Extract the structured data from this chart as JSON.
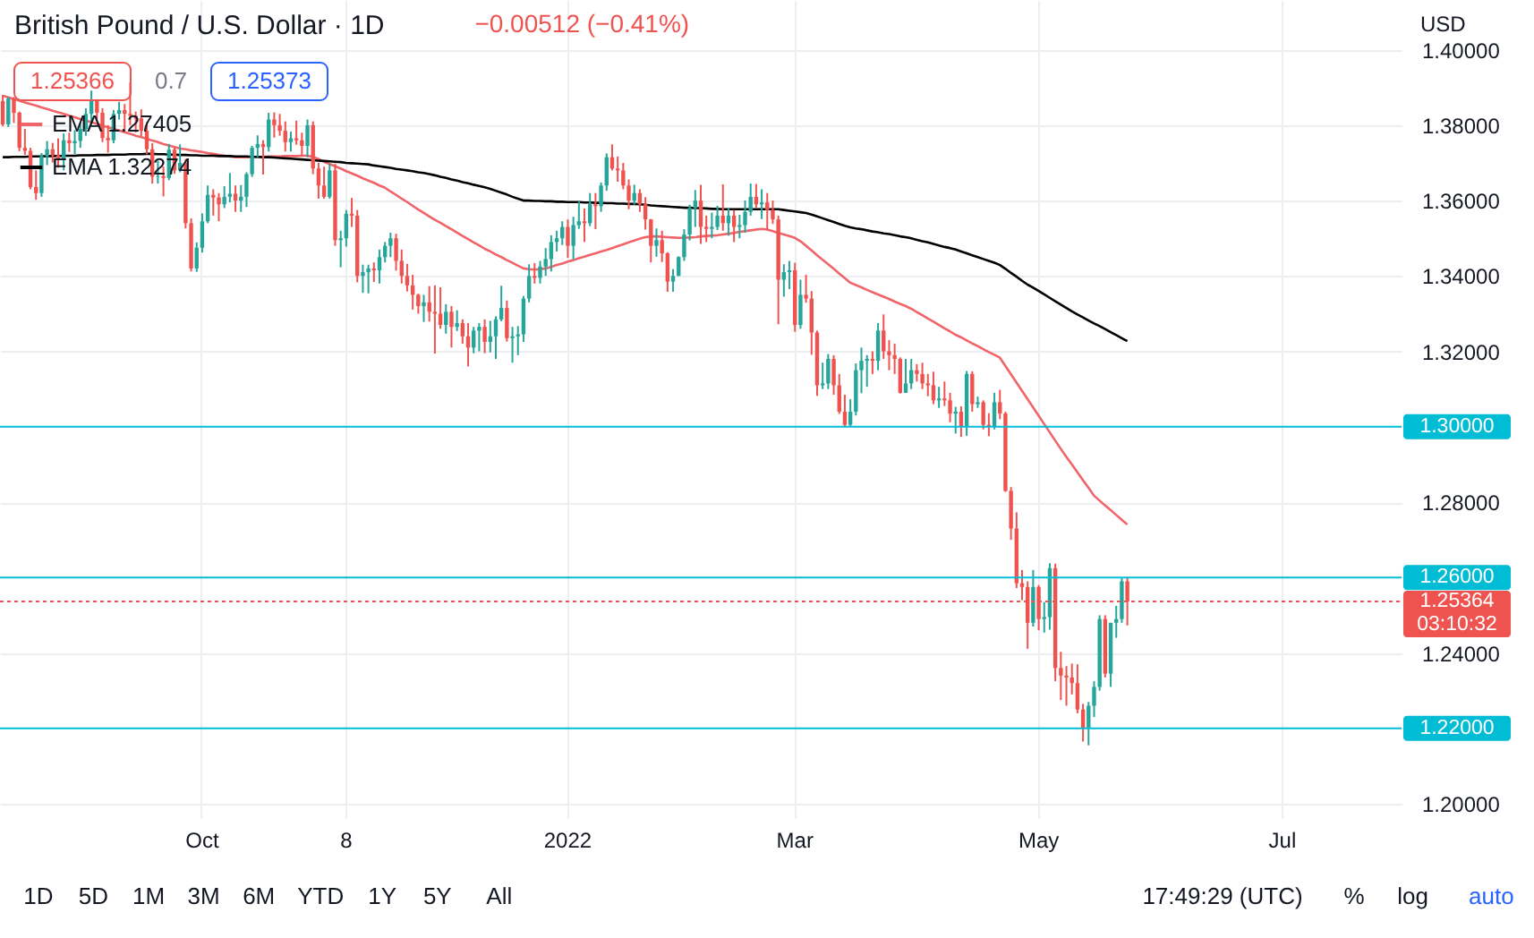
{
  "chart_data": {
    "type": "candlestick",
    "title": "British Pound / U.S. Dollar · 1D",
    "subtitle": "−0.00512 (−0.41%)",
    "ylabel": "USD",
    "categories": [
      null,
      null,
      null,
      null,
      null,
      null,
      null,
      null,
      null,
      null,
      null,
      null,
      null,
      null,
      null,
      null,
      null,
      null,
      null,
      null,
      null,
      null,
      null,
      null,
      null,
      null,
      null,
      null,
      null,
      null,
      null,
      null,
      null,
      null,
      null,
      null,
      "Oct",
      null,
      null,
      null,
      null,
      null,
      null,
      null,
      null,
      null,
      null,
      null,
      null,
      null,
      null,
      null,
      null,
      null,
      null,
      null,
      null,
      null,
      null,
      null,
      null,
      null,
      "8",
      null,
      null,
      null,
      null,
      null,
      null,
      null,
      null,
      null,
      null,
      null,
      null,
      null,
      null,
      null,
      null,
      null,
      null,
      null,
      null,
      null,
      null,
      null,
      null,
      null,
      null,
      null,
      null,
      null,
      null,
      null,
      null,
      null,
      null,
      null,
      null,
      null,
      null,
      null,
      "2022",
      null,
      null,
      null,
      null,
      null,
      null,
      null,
      null,
      null,
      null,
      null,
      null,
      null,
      null,
      null,
      null,
      null,
      null,
      null,
      null,
      null,
      null,
      null,
      null,
      null,
      null,
      null,
      null,
      null,
      null,
      null,
      null,
      null,
      null,
      null,
      null,
      null,
      null,
      null,
      null,
      "Mar",
      null,
      null,
      null,
      null,
      null,
      null,
      null,
      null,
      null,
      null,
      null,
      null,
      null,
      null,
      null,
      null,
      null,
      null,
      null,
      null,
      null,
      null,
      null,
      null,
      null,
      null,
      null,
      null,
      null,
      null,
      null,
      null,
      null,
      null,
      null,
      null,
      null,
      null,
      null,
      null,
      null,
      null,
      null,
      "May",
      null,
      null,
      null,
      null,
      null,
      null,
      null,
      null,
      null,
      null,
      null,
      null,
      null,
      null,
      null,
      null,
      null,
      null,
      null,
      null,
      null,
      null,
      null,
      null,
      null,
      null,
      null,
      null,
      null,
      null,
      null,
      null,
      null,
      null,
      null,
      null,
      null,
      null,
      null,
      null,
      null,
      null,
      null,
      "Jul",
      null,
      null,
      null,
      null,
      null,
      null,
      null,
      null,
      null,
      null,
      null,
      null,
      null,
      null,
      null,
      null,
      null,
      null,
      null,
      null,
      null
    ],
    "ohlc": [
      [
        1.3864,
        1.388,
        1.3797,
        1.3802
      ],
      [
        1.3802,
        1.3875,
        1.3795,
        1.387
      ],
      [
        1.387,
        1.3875,
        1.3806,
        1.3833
      ],
      [
        1.3833,
        1.3836,
        1.3731,
        1.374
      ],
      [
        1.374,
        1.379,
        1.3721,
        1.3732
      ],
      [
        1.3732,
        1.374,
        1.363,
        1.3636
      ],
      [
        1.3636,
        1.368,
        1.3602,
        1.362
      ],
      [
        1.362,
        1.3726,
        1.361,
        1.3718
      ],
      [
        1.3718,
        1.3758,
        1.3694,
        1.3736
      ],
      [
        1.3736,
        1.3753,
        1.3701,
        1.372
      ],
      [
        1.372,
        1.3765,
        1.3687,
        1.371
      ],
      [
        1.371,
        1.3778,
        1.368,
        1.376
      ],
      [
        1.376,
        1.378,
        1.3729,
        1.3752
      ],
      [
        1.3752,
        1.3787,
        1.3723,
        1.3758
      ],
      [
        1.3758,
        1.3806,
        1.374,
        1.379
      ],
      [
        1.379,
        1.3845,
        1.3772,
        1.383
      ],
      [
        1.383,
        1.3892,
        1.3804,
        1.3868
      ],
      [
        1.3868,
        1.3869,
        1.3815,
        1.3833
      ],
      [
        1.3833,
        1.3845,
        1.3755,
        1.3766
      ],
      [
        1.3766,
        1.38,
        1.3727,
        1.376
      ],
      [
        1.376,
        1.384,
        1.3752,
        1.383
      ],
      [
        1.383,
        1.3862,
        1.3815,
        1.384
      ],
      [
        1.384,
        1.3856,
        1.3781,
        1.383
      ],
      [
        1.383,
        1.3913,
        1.38,
        1.3825
      ],
      [
        1.3825,
        1.3836,
        1.3781,
        1.3818
      ],
      [
        1.3818,
        1.3842,
        1.377,
        1.3785
      ],
      [
        1.3785,
        1.3808,
        1.3723,
        1.3736
      ],
      [
        1.3736,
        1.3752,
        1.3645,
        1.3663
      ],
      [
        1.3663,
        1.3706,
        1.3645,
        1.3665
      ],
      [
        1.3665,
        1.369,
        1.3611,
        1.366
      ],
      [
        1.366,
        1.375,
        1.3654,
        1.3735
      ],
      [
        1.3735,
        1.3741,
        1.3671,
        1.368
      ],
      [
        1.368,
        1.3749,
        1.3675,
        1.37
      ],
      [
        1.37,
        1.371,
        1.3526,
        1.354
      ],
      [
        1.354,
        1.3553,
        1.3412,
        1.342
      ],
      [
        1.342,
        1.3489,
        1.3411,
        1.3475
      ],
      [
        1.3475,
        1.3566,
        1.3462,
        1.3545
      ],
      [
        1.3545,
        1.364,
        1.354,
        1.3615
      ],
      [
        1.3615,
        1.363,
        1.356,
        1.3608
      ],
      [
        1.3608,
        1.362,
        1.3545,
        1.359
      ],
      [
        1.359,
        1.3638,
        1.358,
        1.361
      ],
      [
        1.361,
        1.3673,
        1.3595,
        1.3618
      ],
      [
        1.3618,
        1.364,
        1.357,
        1.36
      ],
      [
        1.36,
        1.3641,
        1.357,
        1.361
      ],
      [
        1.361,
        1.3675,
        1.3583,
        1.367
      ],
      [
        1.367,
        1.3745,
        1.3663,
        1.374
      ],
      [
        1.374,
        1.3773,
        1.3715,
        1.375
      ],
      [
        1.375,
        1.376,
        1.3669,
        1.3742
      ],
      [
        1.3742,
        1.3833,
        1.373,
        1.3815
      ],
      [
        1.3815,
        1.3834,
        1.3767,
        1.38
      ],
      [
        1.38,
        1.383,
        1.3772,
        1.3785
      ],
      [
        1.3785,
        1.381,
        1.373,
        1.3755
      ],
      [
        1.3755,
        1.3783,
        1.373,
        1.3765
      ],
      [
        1.3765,
        1.3812,
        1.3748,
        1.376
      ],
      [
        1.376,
        1.378,
        1.3717,
        1.3745
      ],
      [
        1.3745,
        1.3815,
        1.3715,
        1.38
      ],
      [
        1.38,
        1.381,
        1.367,
        1.3685
      ],
      [
        1.3685,
        1.37,
        1.3605,
        1.364
      ],
      [
        1.364,
        1.369,
        1.3605,
        1.361
      ],
      [
        1.361,
        1.3698,
        1.3605,
        1.368
      ],
      [
        1.368,
        1.3698,
        1.348,
        1.3495
      ],
      [
        1.3495,
        1.352,
        1.3423,
        1.35
      ],
      [
        1.35,
        1.3575,
        1.3478,
        1.3565
      ],
      [
        1.3565,
        1.3607,
        1.353,
        1.356
      ],
      [
        1.356,
        1.3575,
        1.3383,
        1.34
      ],
      [
        1.34,
        1.343,
        1.3355,
        1.341
      ],
      [
        1.341,
        1.343,
        1.3354,
        1.342
      ],
      [
        1.342,
        1.3436,
        1.3384,
        1.3415
      ],
      [
        1.3415,
        1.347,
        1.338,
        1.345
      ],
      [
        1.345,
        1.349,
        1.3436,
        1.348
      ],
      [
        1.348,
        1.3515,
        1.345,
        1.35
      ],
      [
        1.35,
        1.3512,
        1.3414,
        1.344
      ],
      [
        1.344,
        1.347,
        1.338,
        1.34
      ],
      [
        1.34,
        1.3432,
        1.3359,
        1.3375
      ],
      [
        1.3375,
        1.3403,
        1.3311,
        1.335
      ],
      [
        1.335,
        1.3353,
        1.33,
        1.332
      ],
      [
        1.332,
        1.335,
        1.3278,
        1.333
      ],
      [
        1.333,
        1.3373,
        1.3279,
        1.3305
      ],
      [
        1.3305,
        1.3375,
        1.3194,
        1.33
      ],
      [
        1.33,
        1.337,
        1.326,
        1.327
      ],
      [
        1.327,
        1.3325,
        1.3247,
        1.3305
      ],
      [
        1.3305,
        1.332,
        1.321,
        1.3265
      ],
      [
        1.3265,
        1.3309,
        1.3254,
        1.3275
      ],
      [
        1.3275,
        1.3285,
        1.322,
        1.324
      ],
      [
        1.324,
        1.3275,
        1.316,
        1.321
      ],
      [
        1.321,
        1.3265,
        1.3195,
        1.3255
      ],
      [
        1.3255,
        1.3275,
        1.32,
        1.3265
      ],
      [
        1.3265,
        1.3285,
        1.3195,
        1.3225
      ],
      [
        1.3225,
        1.3281,
        1.3197,
        1.324
      ],
      [
        1.324,
        1.3293,
        1.318,
        1.3285
      ],
      [
        1.3285,
        1.3374,
        1.328,
        1.3315
      ],
      [
        1.3315,
        1.3335,
        1.3226,
        1.3235
      ],
      [
        1.3235,
        1.3265,
        1.317,
        1.324
      ],
      [
        1.324,
        1.3267,
        1.319,
        1.3245
      ],
      [
        1.3245,
        1.3347,
        1.3225,
        1.334
      ],
      [
        1.334,
        1.3431,
        1.333,
        1.34
      ],
      [
        1.34,
        1.3434,
        1.338,
        1.3395
      ],
      [
        1.3395,
        1.344,
        1.338,
        1.3425
      ],
      [
        1.3425,
        1.3474,
        1.34,
        1.3445
      ],
      [
        1.3445,
        1.3508,
        1.3412,
        1.349
      ],
      [
        1.349,
        1.352,
        1.3465,
        1.35
      ],
      [
        1.35,
        1.3545,
        1.3482,
        1.353
      ],
      [
        1.353,
        1.355,
        1.3448,
        1.348
      ],
      [
        1.348,
        1.3557,
        1.3444,
        1.3535
      ],
      [
        1.3535,
        1.3598,
        1.3525,
        1.3545
      ],
      [
        1.3545,
        1.3579,
        1.349,
        1.354
      ],
      [
        1.354,
        1.362,
        1.3532,
        1.359
      ],
      [
        1.359,
        1.362,
        1.3524,
        1.3585
      ],
      [
        1.3585,
        1.3648,
        1.357,
        1.364
      ],
      [
        1.364,
        1.3725,
        1.3626,
        1.3715
      ],
      [
        1.3715,
        1.3749,
        1.368,
        1.3685
      ],
      [
        1.3685,
        1.3717,
        1.365,
        1.368
      ],
      [
        1.368,
        1.37,
        1.363,
        1.364
      ],
      [
        1.364,
        1.3656,
        1.3577,
        1.36
      ],
      [
        1.36,
        1.3642,
        1.3589,
        1.362
      ],
      [
        1.362,
        1.363,
        1.357,
        1.359
      ],
      [
        1.359,
        1.3609,
        1.3523,
        1.355
      ],
      [
        1.355,
        1.3551,
        1.3436,
        1.348
      ],
      [
        1.348,
        1.3526,
        1.3451,
        1.3495
      ],
      [
        1.3495,
        1.352,
        1.3437,
        1.346
      ],
      [
        1.346,
        1.3463,
        1.3358,
        1.3385
      ],
      [
        1.3385,
        1.3418,
        1.3358,
        1.34
      ],
      [
        1.34,
        1.3452,
        1.34,
        1.345
      ],
      [
        1.345,
        1.3524,
        1.344,
        1.351
      ],
      [
        1.351,
        1.3589,
        1.3494,
        1.358
      ],
      [
        1.358,
        1.3628,
        1.353,
        1.36
      ],
      [
        1.36,
        1.3642,
        1.3485,
        1.353
      ],
      [
        1.353,
        1.356,
        1.349,
        1.3525
      ],
      [
        1.3525,
        1.3568,
        1.35,
        1.353
      ],
      [
        1.353,
        1.3586,
        1.3522,
        1.356
      ],
      [
        1.356,
        1.3643,
        1.352,
        1.354
      ],
      [
        1.354,
        1.358,
        1.3507,
        1.356
      ],
      [
        1.356,
        1.3575,
        1.349,
        1.353
      ],
      [
        1.353,
        1.3562,
        1.35,
        1.3535
      ],
      [
        1.3535,
        1.36,
        1.3515,
        1.357
      ],
      [
        1.357,
        1.3645,
        1.356,
        1.361
      ],
      [
        1.361,
        1.3644,
        1.358,
        1.359
      ],
      [
        1.359,
        1.363,
        1.3551,
        1.3595
      ],
      [
        1.3595,
        1.362,
        1.3523,
        1.3575
      ],
      [
        1.3575,
        1.36,
        1.3538,
        1.355
      ],
      [
        1.355,
        1.356,
        1.3272,
        1.339
      ],
      [
        1.339,
        1.3431,
        1.3345,
        1.341
      ],
      [
        1.341,
        1.344,
        1.3365,
        1.3415
      ],
      [
        1.3415,
        1.3435,
        1.3252,
        1.327
      ],
      [
        1.327,
        1.339,
        1.326,
        1.335
      ],
      [
        1.335,
        1.3403,
        1.3329,
        1.334
      ],
      [
        1.334,
        1.336,
        1.3191,
        1.325
      ],
      [
        1.325,
        1.3255,
        1.3082,
        1.311
      ],
      [
        1.311,
        1.317,
        1.31,
        1.3115
      ],
      [
        1.3115,
        1.3193,
        1.31,
        1.318
      ],
      [
        1.318,
        1.319,
        1.3085,
        1.311
      ],
      [
        1.311,
        1.314,
        1.3034,
        1.304
      ],
      [
        1.304,
        1.3085,
        1.3,
        1.3005
      ],
      [
        1.3005,
        1.3073,
        1.3002,
        1.304
      ],
      [
        1.304,
        1.3168,
        1.303,
        1.315
      ],
      [
        1.315,
        1.321,
        1.3089,
        1.3175
      ],
      [
        1.3175,
        1.319,
        1.3106,
        1.318
      ],
      [
        1.318,
        1.32,
        1.314,
        1.3175
      ],
      [
        1.3175,
        1.3275,
        1.315,
        1.3255
      ],
      [
        1.3255,
        1.3298,
        1.318,
        1.32
      ],
      [
        1.32,
        1.323,
        1.315,
        1.319
      ],
      [
        1.319,
        1.322,
        1.314,
        1.318
      ],
      [
        1.318,
        1.3184,
        1.3088,
        1.309
      ],
      [
        1.309,
        1.318,
        1.309,
        1.3115
      ],
      [
        1.3115,
        1.318,
        1.31,
        1.315
      ],
      [
        1.315,
        1.3166,
        1.312,
        1.314
      ],
      [
        1.314,
        1.317,
        1.31,
        1.3115
      ],
      [
        1.3115,
        1.314,
        1.3081,
        1.311
      ],
      [
        1.311,
        1.3146,
        1.306,
        1.307
      ],
      [
        1.307,
        1.3106,
        1.305,
        1.3075
      ],
      [
        1.3075,
        1.312,
        1.3055,
        1.307
      ],
      [
        1.307,
        1.309,
        1.3012,
        1.3035
      ],
      [
        1.3035,
        1.3053,
        1.2982,
        1.304
      ],
      [
        1.304,
        1.3054,
        1.2973,
        1.3
      ],
      [
        1.3,
        1.3148,
        1.2976,
        1.314
      ],
      [
        1.314,
        1.3147,
        1.304,
        1.306
      ],
      [
        1.306,
        1.308,
        1.305,
        1.3065
      ],
      [
        1.3065,
        1.307,
        1.2993,
        1.3005
      ],
      [
        1.3005,
        1.3036,
        1.2975,
        1.3
      ],
      [
        1.3,
        1.309,
        1.2993,
        1.3065
      ],
      [
        1.3065,
        1.3098,
        1.302,
        1.3035
      ],
      [
        1.3035,
        1.304,
        1.2827,
        1.283
      ],
      [
        1.283,
        1.284,
        1.27,
        1.273
      ],
      [
        1.273,
        1.2773,
        1.2572,
        1.2585
      ],
      [
        1.2585,
        1.262,
        1.254,
        1.2575
      ],
      [
        1.2575,
        1.259,
        1.2411,
        1.248
      ],
      [
        1.248,
        1.262,
        1.247,
        1.2575
      ],
      [
        1.2575,
        1.258,
        1.246,
        1.249
      ],
      [
        1.249,
        1.2535,
        1.2454,
        1.2495
      ],
      [
        1.2495,
        1.2638,
        1.2462,
        1.2625
      ],
      [
        1.2625,
        1.2637,
        1.2325,
        1.236
      ],
      [
        1.236,
        1.2403,
        1.2275,
        1.234
      ],
      [
        1.234,
        1.2365,
        1.226,
        1.2335
      ],
      [
        1.2335,
        1.2372,
        1.229,
        1.232
      ],
      [
        1.232,
        1.237,
        1.224,
        1.225
      ],
      [
        1.225,
        1.2265,
        1.2165,
        1.22
      ],
      [
        1.22,
        1.227,
        1.2155,
        1.226
      ],
      [
        1.226,
        1.2325,
        1.223,
        1.231
      ],
      [
        1.231,
        1.25,
        1.23,
        1.249
      ],
      [
        1.249,
        1.25,
        1.2335,
        1.2345
      ],
      [
        1.2345,
        1.248,
        1.231,
        1.248
      ],
      [
        1.248,
        1.2525,
        1.244,
        1.249
      ],
      [
        1.249,
        1.26,
        1.248,
        1.259
      ],
      [
        1.259,
        1.2599,
        1.2473,
        1.2536
      ],
      null,
      null,
      null,
      null,
      null,
      null,
      null,
      null,
      null,
      null,
      null,
      null,
      null,
      null,
      null,
      null,
      null,
      null,
      null,
      null,
      null,
      null,
      null,
      null,
      null,
      null,
      null,
      null,
      null,
      null,
      null,
      null,
      null,
      null,
      null,
      null,
      null,
      null,
      null,
      null,
      null,
      null,
      null,
      null,
      null,
      null,
      null,
      null,
      null
    ],
    "colors": [
      "#ef5350",
      "#26a69a",
      "#ef5350",
      "#ef5350",
      "#ef5350",
      "#ef5350",
      "#ef5350",
      "#26a69a",
      "#26a69a",
      "#ef5350",
      "#ef5350",
      "#26a69a",
      "#ef5350",
      "#26a69a",
      "#26a69a",
      "#26a69a",
      "#26a69a",
      "#ef5350",
      "#ef5350",
      "#ef5350",
      "#26a69a",
      "#26a69a",
      "#ef5350",
      "#ef5350",
      "#ef5350",
      "#ef5350",
      "#ef5350",
      "#ef5350",
      "#26a69a",
      "#ef5350",
      "#26a69a",
      "#ef5350",
      "#26a69a",
      "#ef5350",
      "#ef5350",
      "#26a69a",
      "#26a69a",
      "#26a69a",
      "#ef5350",
      "#ef5350",
      "#26a69a",
      "#26a69a",
      "#ef5350",
      "#26a69a",
      "#26a69a",
      "#26a69a",
      "#26a69a",
      "#ef5350",
      "#26a69a",
      "#ef5350",
      "#ef5350",
      "#ef5350",
      "#26a69a",
      "#ef5350",
      "#ef5350",
      "#26a69a",
      "#ef5350",
      "#ef5350",
      "#ef5350",
      "#26a69a",
      "#ef5350",
      "#26a69a",
      "#26a69a",
      "#ef5350",
      "#ef5350",
      "#26a69a",
      "#26a69a",
      "#ef5350",
      "#26a69a",
      "#26a69a",
      "#26a69a",
      "#ef5350",
      "#ef5350",
      "#ef5350",
      "#ef5350",
      "#ef5350",
      "#26a69a",
      "#ef5350",
      "#ef5350",
      "#ef5350",
      "#26a69a",
      "#ef5350",
      "#26a69a",
      "#ef5350",
      "#ef5350",
      "#26a69a",
      "#26a69a",
      "#ef5350",
      "#26a69a",
      "#26a69a",
      "#26a69a",
      "#ef5350",
      "#26a69a",
      "#26a69a",
      "#26a69a",
      "#26a69a",
      "#ef5350",
      "#26a69a",
      "#26a69a",
      "#26a69a",
      "#26a69a",
      "#26a69a",
      "#ef5350",
      "#26a69a",
      "#26a69a",
      "#ef5350",
      "#26a69a",
      "#ef5350",
      "#26a69a",
      "#26a69a",
      "#ef5350",
      "#ef5350",
      "#ef5350",
      "#ef5350",
      "#26a69a",
      "#ef5350",
      "#ef5350",
      "#ef5350",
      "#26a69a",
      "#ef5350",
      "#ef5350",
      "#26a69a",
      "#26a69a",
      "#26a69a",
      "#26a69a",
      "#26a69a",
      "#ef5350",
      "#ef5350",
      "#26a69a",
      "#26a69a",
      "#ef5350",
      "#26a69a",
      "#ef5350",
      "#26a69a",
      "#26a69a",
      "#26a69a",
      "#ef5350",
      "#26a69a",
      "#ef5350",
      "#ef5350",
      "#ef5350",
      "#26a69a",
      "#26a69a",
      "#ef5350",
      "#26a69a",
      "#ef5350",
      "#ef5350",
      "#ef5350",
      "#26a69a",
      "#26a69a",
      "#ef5350",
      "#ef5350",
      "#ef5350",
      "#26a69a",
      "#26a69a",
      "#26a69a",
      "#26a69a",
      "#ef5350",
      "#26a69a",
      "#ef5350",
      "#ef5350",
      "#ef5350",
      "#ef5350",
      "#26a69a",
      "#26a69a",
      "#ef5350",
      "#ef5350",
      "#ef5350",
      "#ef5350",
      "#26a69a",
      "#ef5350",
      "#ef5350",
      "#26a69a",
      "#ef5350",
      "#26a69a",
      "#ef5350",
      "#26a69a",
      "#ef5350",
      "#ef5350",
      "#26a69a",
      "#ef5350",
      "#ef5350",
      "#ef5350",
      "#ef5350",
      "#ef5350",
      "#ef5350",
      "#26a69a",
      "#ef5350",
      "#26a69a",
      "#26a69a",
      "#ef5350",
      "#ef5350",
      "#ef5350",
      "#ef5350",
      "#ef5350",
      "#ef5350",
      "#26a69a",
      "#26a69a",
      "#26a69a",
      "#ef5350",
      "#26a69a",
      "#26a69a",
      "#26a69a",
      "#ef5350",
      null,
      null,
      null,
      null,
      null,
      null,
      null,
      null,
      null,
      null,
      null,
      null,
      null,
      null,
      null,
      null,
      null,
      null,
      null,
      null,
      null,
      null,
      null,
      null,
      null,
      null,
      null,
      null,
      null,
      null,
      null,
      null,
      null,
      null,
      null,
      null,
      null,
      null,
      null,
      null,
      null,
      null,
      null,
      null,
      null,
      null,
      null,
      null,
      null
    ],
    "series": [
      {
        "name": "EMA 1.27405",
        "type": "line",
        "color": "#f0646a",
        "values": [
          1.3878,
          1.3874,
          1.3869,
          1.3865,
          1.386,
          1.3856,
          1.3852,
          1.3847,
          1.3843,
          1.3838,
          1.3834,
          1.383,
          1.3825,
          1.3821,
          1.3816,
          1.3812,
          1.3808,
          1.3803,
          1.3799,
          1.3794,
          1.379,
          1.3786,
          1.3781,
          1.3777,
          1.3772,
          1.3768,
          1.3764,
          1.3759,
          1.3755,
          1.375,
          1.3746,
          1.3742,
          1.3738,
          1.3736,
          1.3733,
          1.3731,
          1.3729,
          1.3726,
          1.3724,
          1.3721,
          1.3719,
          1.3717,
          1.3715,
          1.3715,
          1.3715,
          1.3716,
          1.3716,
          1.3716,
          1.3717,
          1.3717,
          1.3717,
          1.3718,
          1.3718,
          1.3718,
          1.3719,
          1.3719,
          1.3716,
          1.371,
          1.3703,
          1.3697,
          1.3691,
          1.3685,
          1.3678,
          1.3672,
          1.3666,
          1.3659,
          1.3653,
          1.3647,
          1.364,
          1.3634,
          1.3624,
          1.3615,
          1.3605,
          1.3596,
          1.3586,
          1.3576,
          1.3567,
          1.3558,
          1.3549,
          1.3541,
          1.3532,
          1.3524,
          1.3515,
          1.3506,
          1.3498,
          1.3489,
          1.3481,
          1.3472,
          1.3465,
          1.3457,
          1.345,
          1.3442,
          1.3435,
          1.3427,
          1.342,
          1.3418,
          1.3417,
          1.3418,
          1.342,
          1.3424,
          1.3429,
          1.3433,
          1.3438,
          1.3442,
          1.3447,
          1.3451,
          1.3456,
          1.346,
          1.3465,
          1.3469,
          1.3474,
          1.3479,
          1.3484,
          1.3489,
          1.3494,
          1.3499,
          1.3503,
          1.3505,
          1.3505,
          1.3504,
          1.3503,
          1.3502,
          1.3501,
          1.3501,
          1.3502,
          1.3503,
          1.3505,
          1.3506,
          1.3507,
          1.3508,
          1.351,
          1.3512,
          1.3514,
          1.3517,
          1.3519,
          1.3521,
          1.3523,
          1.3525,
          1.3523,
          1.3519,
          1.3514,
          1.351,
          1.3506,
          1.3501,
          1.3492,
          1.348,
          1.3468,
          1.3455,
          1.3443,
          1.3431,
          1.3419,
          1.3406,
          1.3394,
          1.3382,
          1.3376,
          1.337,
          1.3363,
          1.3357,
          1.3351,
          1.3345,
          1.3339,
          1.3332,
          1.3326,
          1.332,
          1.3313,
          1.3304,
          1.3296,
          1.3287,
          1.3279,
          1.327,
          1.3261,
          1.3253,
          1.3244,
          1.3237,
          1.3229,
          1.3221,
          1.3214,
          1.3206,
          1.3198,
          1.3191,
          1.3183,
          1.3161,
          1.3139,
          1.3117,
          1.3095,
          1.3073,
          1.3051,
          1.3029,
          1.3007,
          1.2985,
          1.2963,
          1.2941,
          1.292,
          1.29,
          1.2879,
          1.2858,
          1.2838,
          1.2817,
          1.2804,
          1.2791,
          1.2779,
          1.2766,
          1.2753,
          1.2741,
          null,
          null,
          null,
          null,
          null,
          null,
          null,
          null,
          null,
          null,
          null,
          null,
          null,
          null,
          null,
          null,
          null,
          null,
          null,
          null,
          null,
          null,
          null,
          null,
          null,
          null,
          null,
          null,
          null,
          null,
          null,
          null,
          null,
          null,
          null,
          null,
          null,
          null,
          null,
          null,
          null,
          null,
          null,
          null,
          null,
          null,
          null,
          null,
          null
        ]
      },
      {
        "name": "EMA 1.32274",
        "type": "line",
        "color": "#000000",
        "values": [
          1.3715,
          1.3715,
          1.3716,
          1.3716,
          1.3716,
          1.3717,
          1.3717,
          1.3717,
          1.3718,
          1.3718,
          1.3718,
          1.3719,
          1.3719,
          1.3719,
          1.372,
          1.372,
          1.372,
          1.3721,
          1.3721,
          1.3721,
          1.3722,
          1.3722,
          1.3722,
          1.3723,
          1.3723,
          1.3723,
          1.3724,
          1.3724,
          1.3723,
          1.3723,
          1.3722,
          1.3722,
          1.3721,
          1.3721,
          1.372,
          1.372,
          1.3719,
          1.3719,
          1.3719,
          1.3718,
          1.3718,
          1.3718,
          1.3717,
          1.3717,
          1.3717,
          1.3716,
          1.3716,
          1.3715,
          1.3715,
          1.3714,
          1.3713,
          1.3712,
          1.3711,
          1.371,
          1.3709,
          1.3708,
          1.3707,
          1.3706,
          1.3705,
          1.3704,
          1.3703,
          1.3702,
          1.37,
          1.3699,
          1.3698,
          1.3697,
          1.3696,
          1.3693,
          1.3691,
          1.3689,
          1.3687,
          1.3684,
          1.3682,
          1.368,
          1.3678,
          1.3675,
          1.3673,
          1.367,
          1.3667,
          1.3663,
          1.366,
          1.3656,
          1.3653,
          1.3649,
          1.3646,
          1.3642,
          1.3639,
          1.3635,
          1.3631,
          1.3626,
          1.3621,
          1.3616,
          1.361,
          1.3605,
          1.36,
          1.36,
          1.3599,
          1.3599,
          1.3598,
          1.3598,
          1.3597,
          1.3597,
          1.3596,
          1.3596,
          1.3596,
          1.3595,
          1.3595,
          1.3594,
          1.3594,
          1.3593,
          1.3593,
          1.3592,
          1.3592,
          1.3591,
          1.3591,
          1.359,
          1.3589,
          1.3587,
          1.3586,
          1.3585,
          1.3584,
          1.3583,
          1.3582,
          1.3581,
          1.3581,
          1.358,
          1.358,
          1.3579,
          1.3578,
          1.3578,
          1.3577,
          1.3577,
          1.3577,
          1.3577,
          1.3577,
          1.3577,
          1.3577,
          1.3577,
          1.3577,
          1.3577,
          1.3577,
          1.3575,
          1.3573,
          1.3571,
          1.3569,
          1.3567,
          1.3563,
          1.3558,
          1.3553,
          1.3548,
          1.3543,
          1.3538,
          1.3533,
          1.3529,
          1.3526,
          1.3524,
          1.3521,
          1.3518,
          1.3516,
          1.3513,
          1.3511,
          1.3508,
          1.3505,
          1.3503,
          1.35,
          1.3496,
          1.3492,
          1.3489,
          1.3485,
          1.3481,
          1.3477,
          1.3474,
          1.347,
          1.3465,
          1.346,
          1.3455,
          1.345,
          1.3445,
          1.344,
          1.3435,
          1.3429,
          1.3419,
          1.3408,
          1.3398,
          1.3387,
          1.3377,
          1.3369,
          1.336,
          1.3351,
          1.3342,
          1.3333,
          1.3324,
          1.3315,
          1.3306,
          1.3298,
          1.329,
          1.3282,
          1.3274,
          1.3267,
          1.3259,
          1.3251,
          1.3243,
          1.3235,
          1.3227,
          null,
          null,
          null,
          null,
          null,
          null,
          null,
          null,
          null,
          null,
          null,
          null,
          null,
          null,
          null,
          null,
          null,
          null,
          null,
          null,
          null,
          null,
          null,
          null,
          null,
          null,
          null,
          null,
          null,
          null,
          null,
          null,
          null,
          null,
          null,
          null,
          null,
          null,
          null,
          null,
          null,
          null,
          null,
          null,
          null,
          null,
          null,
          null,
          null
        ]
      }
    ],
    "ylim": [
      1.1962,
      1.4132
    ],
    "yticks": [
      {
        "value": 1.2,
        "label": "1.20000"
      },
      {
        "value": 1.24,
        "label": "1.24000"
      },
      {
        "value": 1.28,
        "label": "1.28000"
      },
      {
        "value": 1.32,
        "label": "1.32000"
      },
      {
        "value": 1.34,
        "label": "1.34000"
      },
      {
        "value": 1.36,
        "label": "1.36000"
      },
      {
        "value": 1.38,
        "label": "1.38000"
      },
      {
        "value": 1.4,
        "label": "1.40000"
      }
    ],
    "ref_lines": [
      {
        "axis": "y",
        "value": 1.3,
        "label": "1.30000",
        "color": "#00bcd4"
      },
      {
        "axis": "y",
        "value": 1.26,
        "label": "1.26000",
        "color": "#00bcd4"
      },
      {
        "axis": "y",
        "value": 1.22,
        "label": "1.22000",
        "color": "#00bcd4"
      },
      {
        "axis": "y",
        "value": 1.25364,
        "label": "1.25364\n03:10:32",
        "color": "#ef5350",
        "line_style": "dotted"
      }
    ],
    "grid": true,
    "legend": "top left",
    "annotations": [
      "1.25366",
      "0.7",
      "1.25373",
      "1D",
      "5D",
      "1M",
      "3M",
      "6M",
      "YTD",
      "1Y",
      "5Y",
      "All",
      "17:49:29 (UTC)",
      "%",
      "log",
      "auto"
    ]
  }
}
